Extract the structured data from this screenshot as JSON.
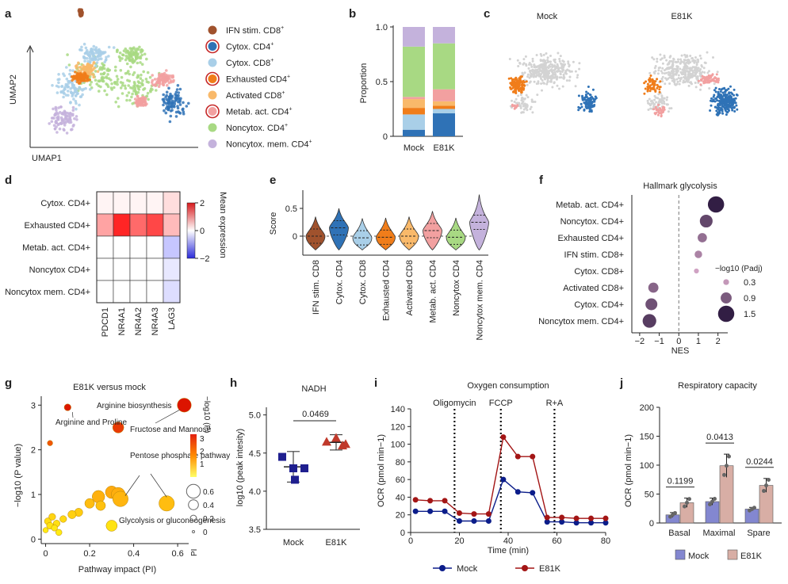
{
  "panels": {
    "a": {
      "letter": "a",
      "xlabel": "UMAP1",
      "ylabel": "UMAP2",
      "legend": [
        {
          "label": "IFN stim. CD8",
          "sup": "+",
          "color": "#a0522d",
          "ring": false
        },
        {
          "label": "Cytox. CD4",
          "sup": "+",
          "color": "#2f72b6",
          "ring": true
        },
        {
          "label": "Cytox. CD8",
          "sup": "+",
          "color": "#a9cfe8",
          "ring": false
        },
        {
          "label": "Exhausted CD4",
          "sup": "+",
          "color": "#f07d1a",
          "ring": true
        },
        {
          "label": "Activated CD8",
          "sup": "+",
          "color": "#f9b96a",
          "ring": false
        },
        {
          "label": "Metab. act. CD4",
          "sup": "+",
          "color": "#f2a0a0",
          "ring": true
        },
        {
          "label": "Noncytox. CD4",
          "sup": "+",
          "color": "#a8d983",
          "ring": false
        },
        {
          "label": "Noncytox. mem. CD4",
          "sup": "+",
          "color": "#c4b2dc",
          "ring": false
        }
      ]
    },
    "b": {
      "letter": "b",
      "ylabel": "Proportion",
      "yticks": [
        "0",
        "0.5",
        "1.0"
      ]
    },
    "c": {
      "letter": "c",
      "titles": [
        "Mock",
        "E81K"
      ]
    },
    "d": {
      "letter": "d",
      "colorbar_label": "Mean expression",
      "colorbar_ticks": [
        "2",
        "0",
        "−2"
      ]
    },
    "e": {
      "letter": "e",
      "ylabel": "Score",
      "yticks": [
        "0",
        "0.5"
      ]
    },
    "f": {
      "letter": "f",
      "title": "Hallmark glycolysis",
      "xlabel": "NES",
      "xticks": [
        "−2",
        "−1",
        "0",
        "1",
        "2"
      ],
      "size_legend_title": "−log10 (Padj)",
      "size_legend": [
        "0.3",
        "0.9",
        "1.5"
      ]
    },
    "g": {
      "letter": "g",
      "title": "E81K versus mock",
      "xlabel": "Pathway impact (PI)",
      "ylabel": "−log10 (P value)",
      "xticks": [
        "0",
        "0.2",
        "0.4",
        "0.6"
      ],
      "yticks": [
        "0",
        "1",
        "2",
        "3"
      ],
      "color_legend_title": "−log10 (P)",
      "color_ticks": [
        "3",
        "2",
        "1"
      ],
      "size_legend_title": "PI",
      "size_legend": [
        "0.6",
        "0.4",
        "0.2",
        "0"
      ],
      "annotations": [
        "Arginine and Proline",
        "Arginine biosynthesis",
        "Fructose and Mannose",
        "Pentose phosphate pathway",
        "Glycolysis or gluconeogenesis"
      ]
    },
    "h": {
      "letter": "h",
      "title": "NADH",
      "ylabel": "log10 (peak intesity)",
      "pvalue": "0.0469",
      "yticks": [
        "3.5",
        "4.0",
        "4.5",
        "5.0"
      ]
    },
    "i": {
      "letter": "i",
      "title": "Oxygen consumption",
      "xlabel": "Time (min)",
      "ylabel": "OCR (pmol min−1)",
      "injections": [
        "Oligomycin",
        "FCCP",
        "R+A"
      ],
      "xticks": [
        "0",
        "20",
        "40",
        "60",
        "80"
      ],
      "yticks": [
        "0",
        "20",
        "40",
        "60",
        "80",
        "100",
        "120",
        "140"
      ],
      "legend": [
        "Mock",
        "E81K"
      ]
    },
    "j": {
      "letter": "j",
      "title": "Respiratory capacity",
      "ylabel": "OCR (pmol min−1)",
      "yticks": [
        "0",
        "50",
        "100",
        "150",
        "200"
      ],
      "pvalues": [
        "0.1199",
        "0.0413",
        "0.0244"
      ],
      "legend": [
        "Mock",
        "E81K"
      ]
    }
  },
  "chart_data": [
    {
      "panel": "b",
      "type": "bar",
      "categories": [
        "Mock",
        "E81K"
      ],
      "ylim": [
        0,
        1.0
      ],
      "series": [
        {
          "name": "Cytox. CD4+",
          "color": "#2f72b6",
          "values": [
            0.06,
            0.21
          ]
        },
        {
          "name": "Cytox. CD8+",
          "color": "#a9cfe8",
          "values": [
            0.14,
            0.04
          ]
        },
        {
          "name": "Exhausted CD4+",
          "color": "#f07d1a",
          "values": [
            0.06,
            0.03
          ]
        },
        {
          "name": "Activated CD8+",
          "color": "#f9b96a",
          "values": [
            0.08,
            0.04
          ]
        },
        {
          "name": "Metab. act. CD4+",
          "color": "#f2a0a0",
          "values": [
            0.02,
            0.11
          ]
        },
        {
          "name": "Noncytox. CD4+",
          "color": "#a8d983",
          "values": [
            0.46,
            0.42
          ]
        },
        {
          "name": "Noncytox. mem. CD4+",
          "color": "#c4b2dc",
          "values": [
            0.18,
            0.15
          ]
        }
      ]
    },
    {
      "panel": "d",
      "type": "heatmap",
      "rows": [
        "Cytox. CD4+",
        "Exhausted CD4+",
        "Metab. act. CD4+",
        "Noncytox CD4+",
        "Noncytox mem. CD4+"
      ],
      "columns": [
        "PDCD1",
        "NR4A1",
        "NR4A2",
        "NR4A3",
        "LAG3"
      ],
      "values": [
        [
          0.1,
          0.1,
          0.1,
          0.1,
          0.3
        ],
        [
          0.8,
          1.9,
          1.3,
          1.6,
          0.6
        ],
        [
          0,
          0,
          0,
          0,
          -0.5
        ],
        [
          0,
          0,
          0,
          0,
          -0.2
        ],
        [
          0,
          0,
          0,
          0,
          -0.3
        ]
      ],
      "zlim": [
        -2,
        2
      ]
    },
    {
      "panel": "e",
      "type": "violin",
      "categories": [
        "IFN stim. CD8+",
        "Cytox. CD4+",
        "Cytox. CD8+",
        "Exhausted CD4+",
        "Activated CD8+",
        "Metab. act. CD4+",
        "Noncytox CD4+",
        "Noncytox mem. CD4+"
      ],
      "medians": [
        0.0,
        0.15,
        -0.03,
        -0.02,
        0.0,
        0.1,
        -0.02,
        0.25
      ],
      "ylim": [
        -0.3,
        0.75
      ]
    },
    {
      "panel": "f",
      "type": "scatter",
      "categories": [
        "Metab. act. CD4+",
        "Noncytox. CD4+",
        "Exhausted CD4+",
        "IFN stim. CD8+",
        "Cytox. CD8+",
        "Activated CD8+",
        "Cytox. CD4+",
        "Noncytox mem. CD4+"
      ],
      "nes": [
        1.9,
        1.4,
        1.2,
        1.0,
        0.9,
        -1.3,
        -1.4,
        -1.5
      ],
      "neglog10_padj": [
        1.5,
        1.1,
        0.7,
        0.5,
        0.2,
        0.8,
        1.0,
        1.2
      ],
      "xlim": [
        -2.4,
        2.5
      ]
    },
    {
      "panel": "g",
      "type": "scatter",
      "x": [
        0.1,
        0.33,
        0.63,
        0.24,
        0.3,
        0.33,
        0.34,
        0.55,
        0.3,
        0.02,
        0.01,
        0.02,
        0.03,
        0.05,
        0.08,
        0.2,
        0.25,
        0.15,
        0.12,
        0.0,
        0.04,
        0.06
      ],
      "y": [
        2.95,
        2.5,
        3.0,
        0.95,
        1.05,
        1.0,
        0.9,
        0.8,
        0.3,
        2.15,
        0.4,
        0.3,
        0.5,
        0.35,
        0.45,
        0.8,
        0.75,
        0.6,
        0.55,
        0.2,
        0.25,
        0.15
      ],
      "pi": [
        0.1,
        0.25,
        0.35,
        0.3,
        0.3,
        0.35,
        0.4,
        0.4,
        0.25,
        0.05,
        0.1,
        0.1,
        0.1,
        0.1,
        0.1,
        0.2,
        0.2,
        0.15,
        0.15,
        0.05,
        0.08,
        0.08
      ],
      "xlim": [
        -0.02,
        0.65
      ],
      "ylim": [
        -0.1,
        3.2
      ]
    },
    {
      "panel": "h",
      "type": "scatter",
      "categories": [
        "Mock",
        "E81K"
      ],
      "points": [
        [
          4.45,
          4.3,
          4.3,
          4.15
        ],
        [
          4.65,
          4.62,
          4.7,
          4.6
        ]
      ],
      "mean": [
        4.32,
        4.64
      ],
      "sd": [
        0.2,
        0.1
      ],
      "ylim": [
        3.5,
        5.1
      ]
    },
    {
      "panel": "i",
      "type": "line",
      "x": [
        2,
        8,
        14,
        20,
        26,
        32,
        38,
        44,
        50,
        56,
        62,
        68,
        74,
        80
      ],
      "series": [
        {
          "name": "Mock",
          "color": "#0b1d8a",
          "values": [
            24,
            24,
            24,
            13,
            13,
            13,
            60,
            46,
            45,
            12,
            12,
            11,
            11,
            11
          ]
        },
        {
          "name": "E81K",
          "color": "#a31515",
          "values": [
            37,
            36,
            36,
            22,
            21,
            21,
            108,
            86,
            86,
            17,
            17,
            16,
            16,
            16
          ]
        }
      ],
      "injection_times": [
        18,
        37,
        59
      ],
      "xlim": [
        0,
        80
      ],
      "ylim": [
        0,
        140
      ]
    },
    {
      "panel": "j",
      "type": "bar",
      "categories": [
        "Basal",
        "Maximal",
        "Spare"
      ],
      "series": [
        {
          "name": "Mock",
          "color": "#8387d0",
          "values": [
            14,
            37,
            24
          ]
        },
        {
          "name": "E81K",
          "color": "#d8aea5",
          "values": [
            35,
            99,
            65
          ]
        }
      ],
      "ylim": [
        0,
        200
      ]
    }
  ]
}
